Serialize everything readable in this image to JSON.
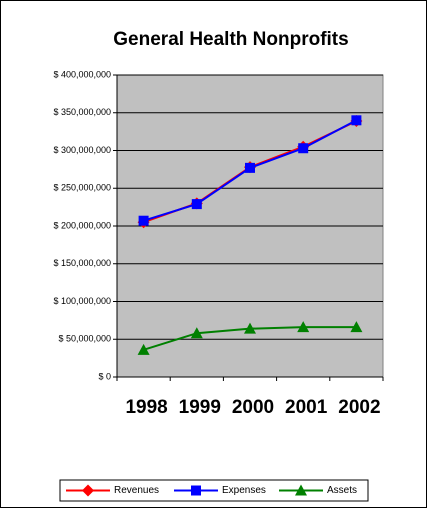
{
  "chart_data": {
    "type": "line",
    "title": "General Health Nonprofits",
    "categories": [
      "1998",
      "1999",
      "2000",
      "2001",
      "2002"
    ],
    "series": [
      {
        "name": "Revenues",
        "color": "#ff0000",
        "marker": "diamond",
        "values": [
          205000000,
          230000000,
          278000000,
          305000000,
          339000000
        ]
      },
      {
        "name": "Expenses",
        "color": "#0000ff",
        "marker": "square",
        "values": [
          207000000,
          229000000,
          277000000,
          303000000,
          340000000
        ]
      },
      {
        "name": "Assets",
        "color": "#008000",
        "marker": "triangle",
        "values": [
          36000000,
          58000000,
          64000000,
          66000000,
          66000000
        ]
      }
    ],
    "ylim": [
      0,
      400000000
    ],
    "yticks": [
      {
        "value": 0,
        "label": "$ 0"
      },
      {
        "value": 50000000,
        "label": "$ 50,000,000"
      },
      {
        "value": 100000000,
        "label": "$ 100,000,000"
      },
      {
        "value": 150000000,
        "label": "$ 150,000,000"
      },
      {
        "value": 200000000,
        "label": "$ 200,000,000"
      },
      {
        "value": 250000000,
        "label": "$ 250,000,000"
      },
      {
        "value": 300000000,
        "label": "$ 300,000,000"
      },
      {
        "value": 350000000,
        "label": "$ 350,000,000"
      },
      {
        "value": 400000000,
        "label": "$ 400,000,000"
      }
    ],
    "grid": true,
    "legend": "bottom",
    "plot_background": "#c0c0c0"
  }
}
